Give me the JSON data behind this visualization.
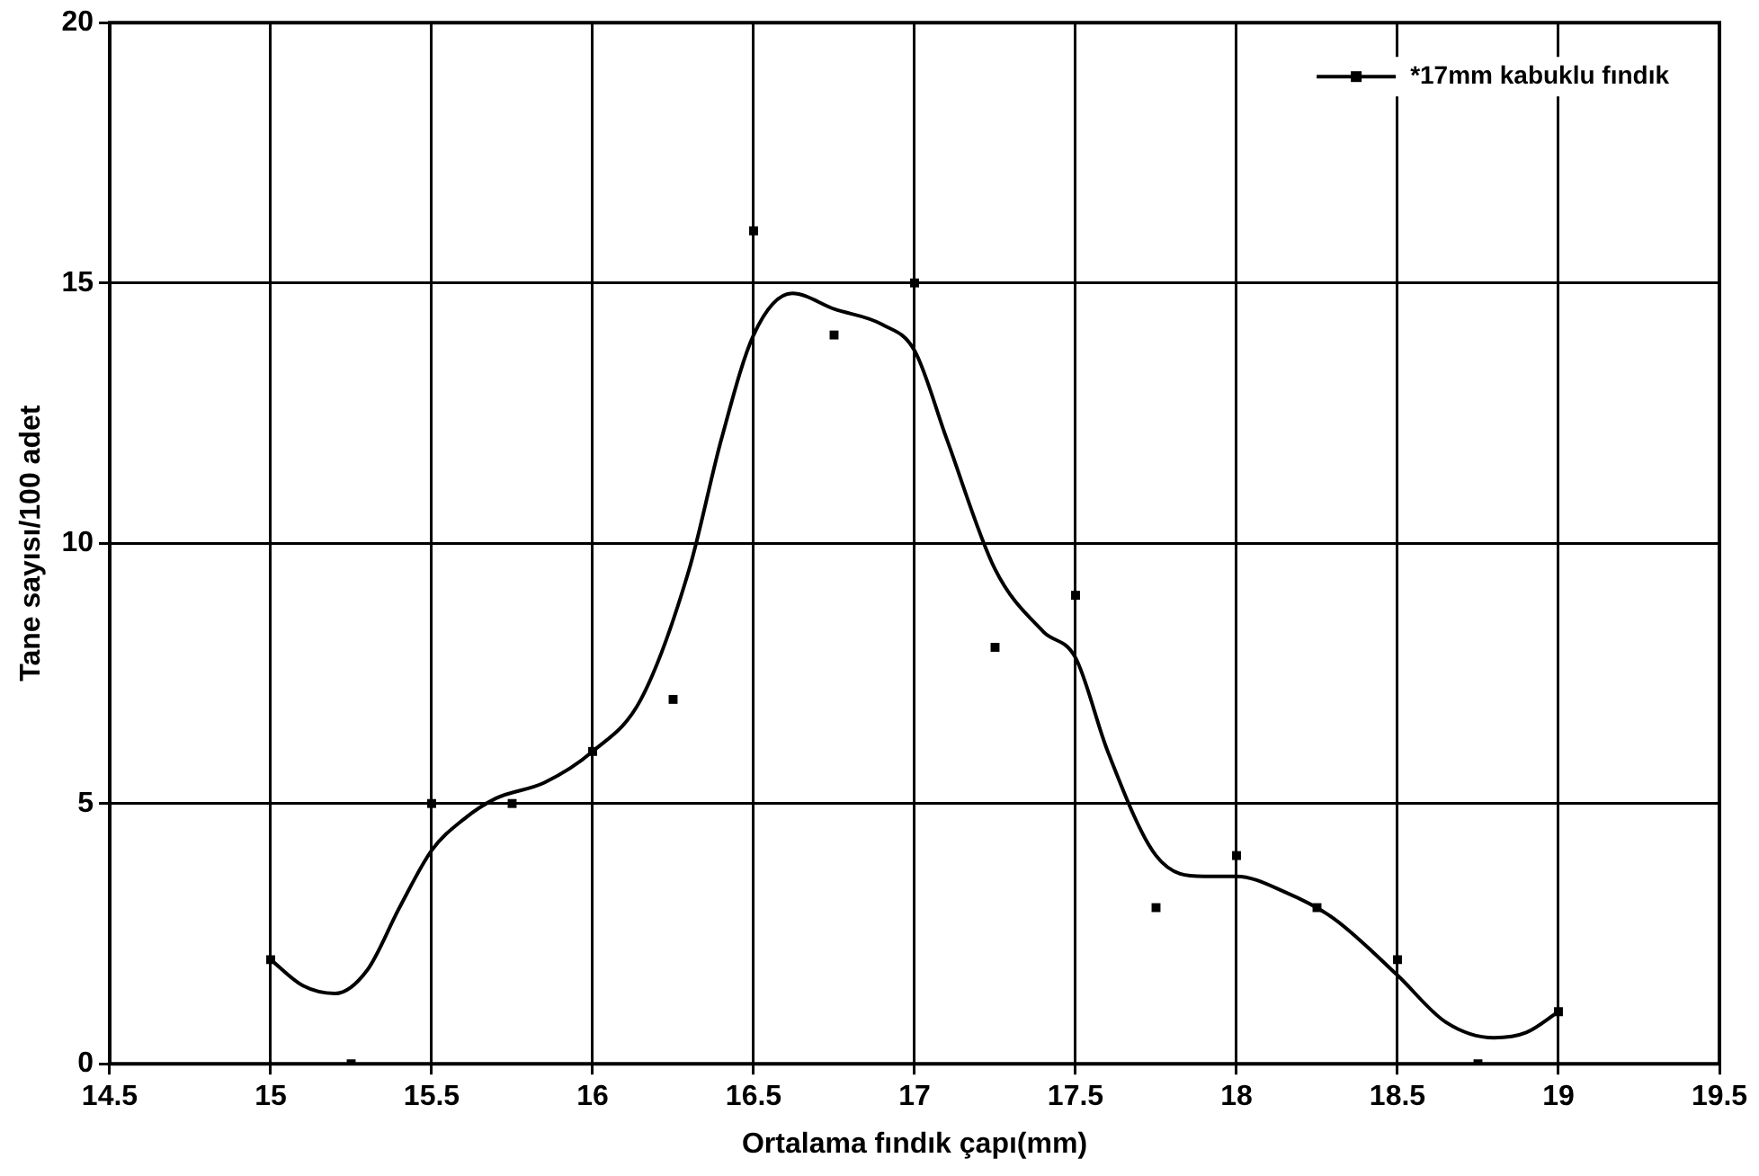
{
  "chart_data": {
    "type": "scatter",
    "xlabel": "Ortalama fındık çapı(mm)",
    "ylabel": "Tane sayısı/100 adet",
    "xlim": [
      14.5,
      19.5
    ],
    "xticks": [
      14.5,
      15,
      15.5,
      16,
      16.5,
      17,
      17.5,
      18,
      18.5,
      19,
      19.5
    ],
    "ylim": [
      0,
      20
    ],
    "yticks": [
      0,
      5,
      10,
      15,
      20
    ],
    "grid": true,
    "legend": "top right",
    "marker": "square",
    "series": [
      {
        "name": "*17mm kabuklu fındık",
        "color": "#000000",
        "x": [
          15,
          15.25,
          15.5,
          15.75,
          16,
          16.25,
          16.5,
          16.75,
          17,
          17.25,
          17.5,
          17.75,
          18,
          18.25,
          18.5,
          18.75,
          19
        ],
        "values": [
          2,
          0,
          5,
          5,
          6,
          7,
          16,
          14,
          15,
          8,
          9,
          3,
          4,
          3,
          2,
          0,
          1
        ]
      },
      {
        "type": "line",
        "marker": "none",
        "color": "#000000",
        "x": [
          15,
          15.1,
          15.2,
          15.3,
          15.4,
          15.5,
          15.6,
          15.7,
          15.85,
          16,
          16.15,
          16.3,
          16.4,
          16.5,
          16.62,
          16.75,
          16.9,
          17,
          17.1,
          17.25,
          17.4,
          17.5,
          17.6,
          17.75,
          17.9,
          18,
          18.15,
          18.3,
          18.5,
          18.65,
          18.8,
          18.9,
          19
        ],
        "values": [
          2,
          1.5,
          1.35,
          1.8,
          3,
          4.1,
          4.7,
          5.1,
          5.4,
          6,
          7,
          9.5,
          12,
          14,
          14.8,
          14.5,
          14.2,
          13.7,
          12,
          9.5,
          8.3,
          7.8,
          6,
          4,
          3.6,
          3.6,
          3.3,
          2.8,
          1.7,
          0.8,
          0.5,
          0.6,
          1
        ]
      }
    ]
  }
}
